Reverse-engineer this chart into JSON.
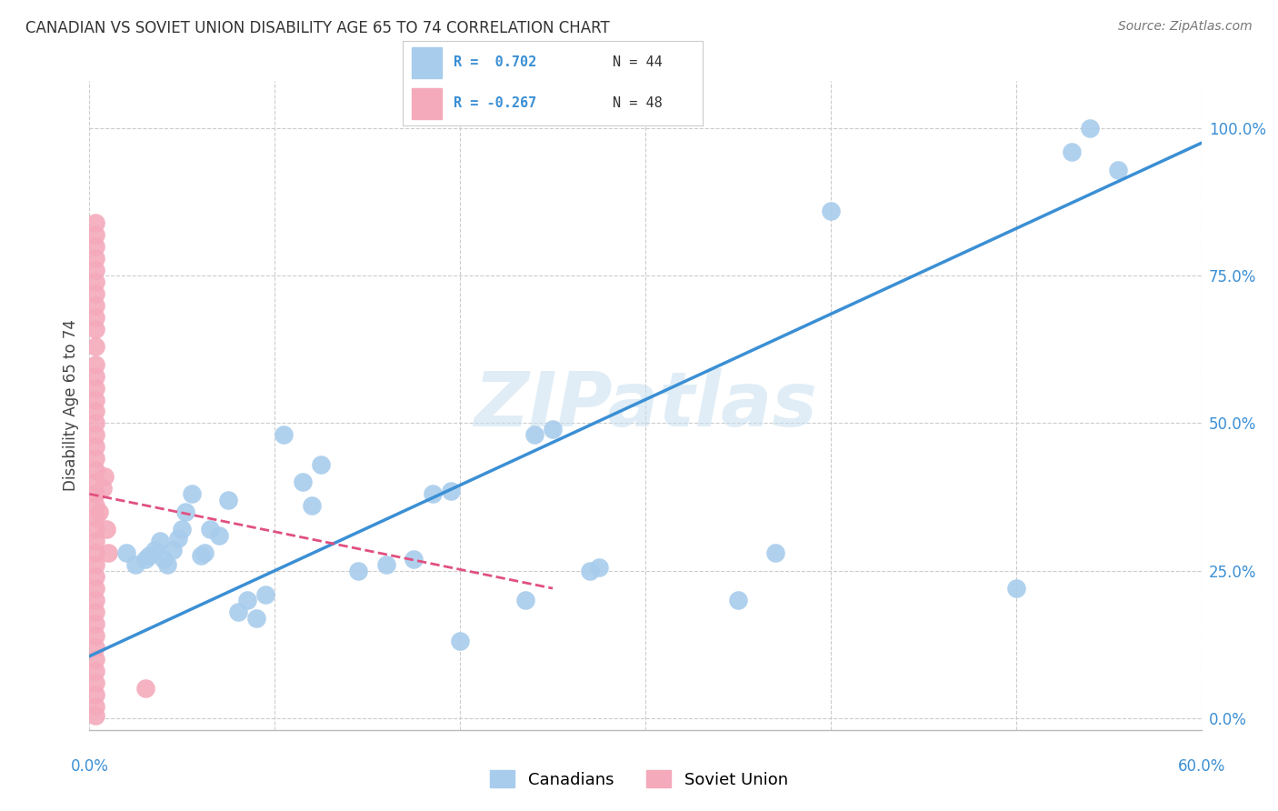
{
  "title": "CANADIAN VS SOVIET UNION DISABILITY AGE 65 TO 74 CORRELATION CHART",
  "source": "Source: ZipAtlas.com",
  "ylabel": "Disability Age 65 to 74",
  "watermark": "ZIPatlas",
  "legend_blue_r": "R =  0.702",
  "legend_blue_n": "N = 44",
  "legend_pink_r": "R = -0.267",
  "legend_pink_n": "N = 48",
  "legend_blue_label": "Canadians",
  "legend_pink_label": "Soviet Union",
  "ytick_labels": [
    "0.0%",
    "25.0%",
    "50.0%",
    "75.0%",
    "100.0%"
  ],
  "ytick_values": [
    0.0,
    25.0,
    50.0,
    75.0,
    100.0
  ],
  "xlim": [
    0.0,
    60.0
  ],
  "ylim": [
    -2.0,
    108.0
  ],
  "blue_scatter_color": "#A8CCEC",
  "pink_scatter_color": "#F4AABB",
  "blue_line_color": "#3B8FD4",
  "pink_line_color": "#E05080",
  "grid_color": "#CCCCCC",
  "background_color": "#FFFFFF",
  "canadians_x": [
    2.0,
    2.5,
    3.0,
    3.2,
    3.5,
    3.8,
    4.0,
    4.2,
    4.5,
    4.8,
    5.0,
    5.2,
    5.5,
    6.0,
    6.2,
    6.5,
    7.0,
    7.5,
    8.0,
    8.5,
    9.0,
    9.5,
    10.5,
    11.5,
    12.0,
    12.5,
    14.5,
    16.0,
    17.5,
    18.5,
    19.5,
    20.0,
    23.5,
    24.0,
    25.0,
    27.0,
    27.5,
    35.0,
    37.0,
    40.0,
    50.0,
    53.0,
    54.0,
    55.5
  ],
  "canadians_y": [
    28.0,
    26.0,
    27.0,
    27.5,
    28.5,
    30.0,
    27.0,
    26.0,
    28.5,
    30.5,
    32.0,
    35.0,
    38.0,
    27.5,
    28.0,
    32.0,
    31.0,
    37.0,
    18.0,
    20.0,
    17.0,
    21.0,
    48.0,
    40.0,
    36.0,
    43.0,
    25.0,
    26.0,
    27.0,
    38.0,
    38.5,
    13.0,
    20.0,
    48.0,
    49.0,
    25.0,
    25.5,
    20.0,
    28.0,
    86.0,
    22.0,
    96.0,
    100.0,
    93.0
  ],
  "soviet_x": [
    0.3,
    0.3,
    0.3,
    0.3,
    0.3,
    0.3,
    0.3,
    0.3,
    0.3,
    0.3,
    0.3,
    0.3,
    0.3,
    0.3,
    0.3,
    0.3,
    0.3,
    0.3,
    0.3,
    0.3,
    0.3,
    0.3,
    0.3,
    0.3,
    0.3,
    0.3,
    0.3,
    0.3,
    0.3,
    0.3,
    0.3,
    0.3,
    0.3,
    0.3,
    0.3,
    0.3,
    0.3,
    0.3,
    0.3,
    0.3,
    0.3,
    0.3,
    0.5,
    0.7,
    0.8,
    0.9,
    1.0,
    3.0
  ],
  "soviet_y": [
    0.5,
    2.0,
    4.0,
    6.0,
    8.0,
    10.0,
    12.0,
    14.0,
    16.0,
    18.0,
    20.0,
    22.0,
    24.0,
    26.0,
    28.0,
    30.0,
    32.0,
    34.0,
    36.0,
    38.0,
    40.0,
    42.0,
    44.0,
    46.0,
    48.0,
    50.0,
    52.0,
    54.0,
    56.0,
    58.0,
    60.0,
    63.0,
    66.0,
    68.0,
    70.0,
    72.0,
    74.0,
    76.0,
    78.0,
    80.0,
    82.0,
    84.0,
    35.0,
    39.0,
    41.0,
    32.0,
    28.0,
    5.0
  ],
  "blue_trend_x": [
    0.0,
    60.0
  ],
  "blue_trend_y": [
    10.5,
    97.5
  ],
  "pink_trend_x": [
    0.0,
    25.0
  ],
  "pink_trend_y": [
    38.0,
    22.0
  ]
}
